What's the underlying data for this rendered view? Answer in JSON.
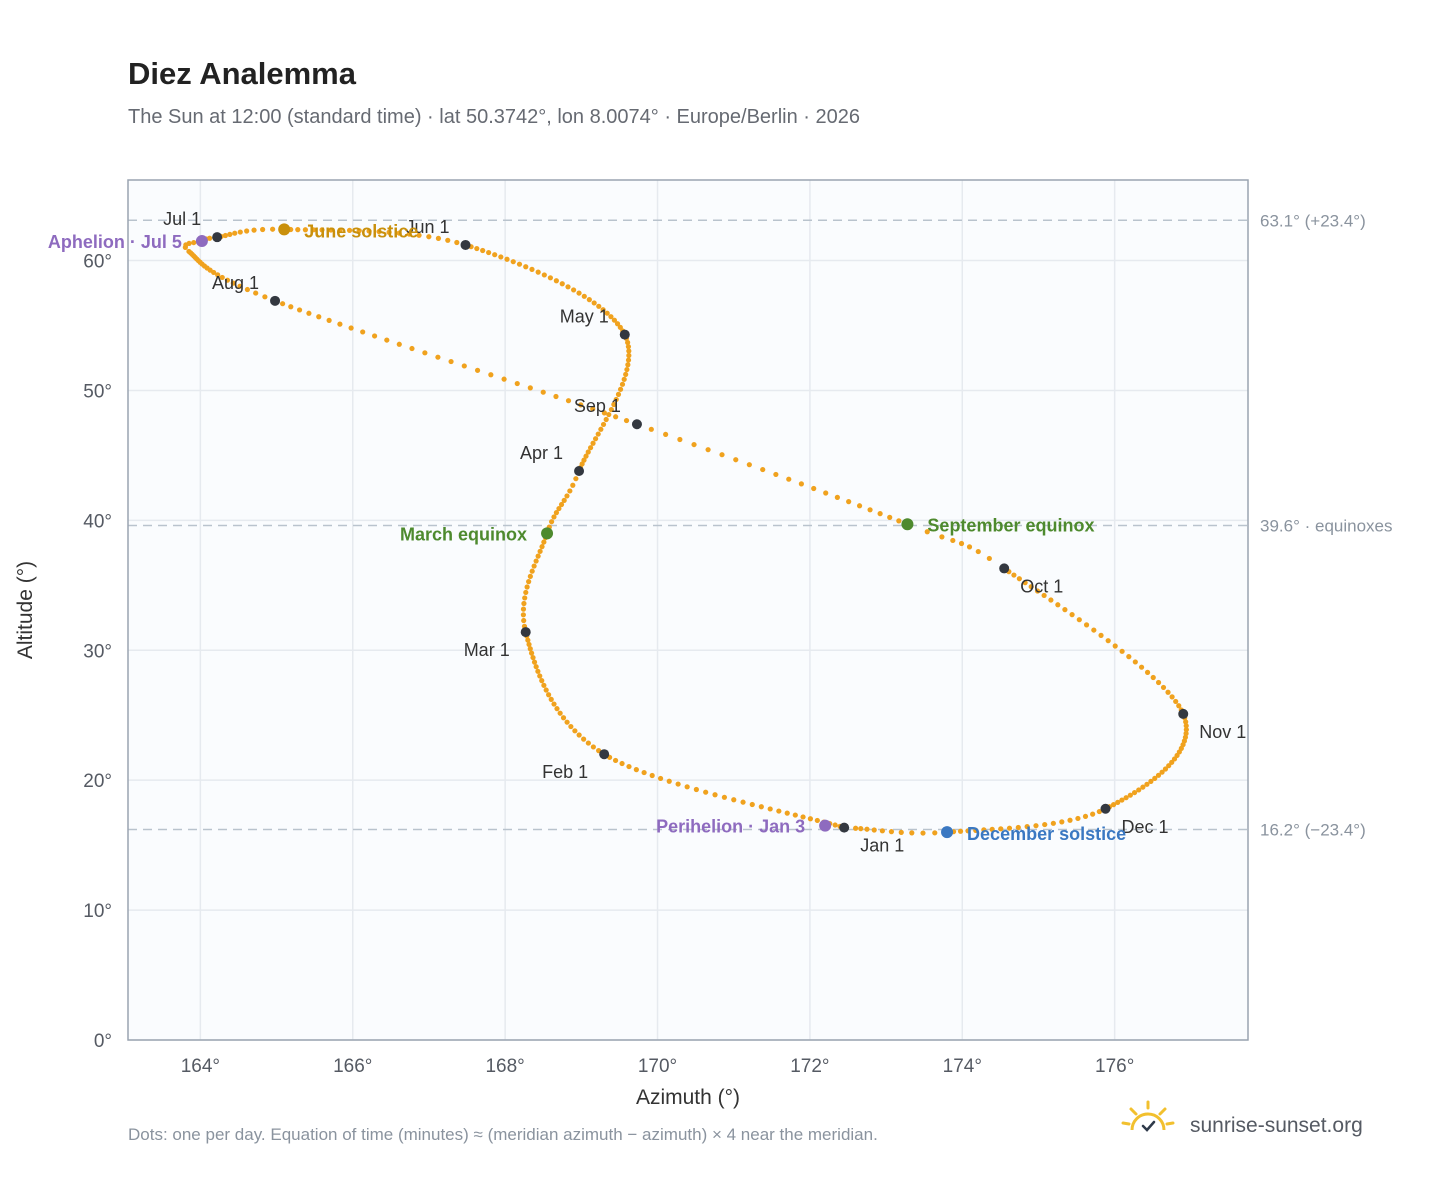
{
  "chart_data": {
    "type": "scatter",
    "title": "Diez Analemma",
    "subtitle": "The Sun at 12:00 (standard time) · lat 50.3742°, lon 8.0074° · Europe/Berlin · 2026",
    "xlabel": "Azimuth (°)",
    "ylabel": "Altitude (°)",
    "xlim": [
      163.05,
      177.75
    ],
    "ylim": [
      0,
      66.2
    ],
    "x_ticks": [
      164,
      166,
      168,
      170,
      172,
      174,
      176
    ],
    "x_tick_labels": [
      "164°",
      "166°",
      "168°",
      "170°",
      "172°",
      "174°",
      "176°"
    ],
    "y_ticks": [
      0,
      10,
      20,
      30,
      40,
      50,
      60
    ],
    "y_tick_labels": [
      "0°",
      "10°",
      "20°",
      "30°",
      "40°",
      "50°",
      "60°"
    ],
    "grid": true,
    "reference_lines": [
      {
        "y": 63.1,
        "label": "63.1° (+23.4°)"
      },
      {
        "y": 39.6,
        "label": "39.6° · equinoxes"
      },
      {
        "y": 16.2,
        "label": "16.2° (−23.4°)"
      }
    ],
    "path_control_points": [
      {
        "doy": 1,
        "az": 172.45,
        "alt": 16.35
      },
      {
        "doy": 32,
        "az": 169.3,
        "alt": 22.0
      },
      {
        "doy": 60,
        "az": 168.27,
        "alt": 31.4
      },
      {
        "doy": 79,
        "az": 168.55,
        "alt": 39.0
      },
      {
        "doy": 91,
        "az": 168.97,
        "alt": 43.8
      },
      {
        "doy": 121,
        "az": 169.57,
        "alt": 54.3
      },
      {
        "doy": 152,
        "az": 167.48,
        "alt": 61.2
      },
      {
        "doy": 172,
        "az": 165.1,
        "alt": 62.4
      },
      {
        "doy": 182,
        "az": 164.22,
        "alt": 61.8
      },
      {
        "doy": 186,
        "az": 164.02,
        "alt": 61.5
      },
      {
        "doy": 192,
        "az": 163.85,
        "alt": 60.7
      },
      {
        "doy": 213,
        "az": 164.98,
        "alt": 56.9
      },
      {
        "doy": 244,
        "az": 169.73,
        "alt": 47.4
      },
      {
        "doy": 266,
        "az": 173.28,
        "alt": 39.7
      },
      {
        "doy": 274,
        "az": 174.55,
        "alt": 36.3
      },
      {
        "doy": 305,
        "az": 176.9,
        "alt": 25.1
      },
      {
        "doy": 335,
        "az": 175.88,
        "alt": 17.8
      },
      {
        "doy": 355,
        "az": 173.8,
        "alt": 16.0
      },
      {
        "doy": 365,
        "az": 172.6,
        "alt": 16.3
      }
    ],
    "month_markers": [
      {
        "label": "Jan 1",
        "az": 172.45,
        "alt": 16.35
      },
      {
        "label": "Feb 1",
        "az": 169.3,
        "alt": 22.0
      },
      {
        "label": "Mar 1",
        "az": 168.27,
        "alt": 31.4
      },
      {
        "label": "Apr 1",
        "az": 168.97,
        "alt": 43.8
      },
      {
        "label": "May 1",
        "az": 169.57,
        "alt": 54.3
      },
      {
        "label": "Jun 1",
        "az": 167.48,
        "alt": 61.2
      },
      {
        "label": "Jul 1",
        "az": 164.22,
        "alt": 61.8
      },
      {
        "label": "Aug 1",
        "az": 164.98,
        "alt": 56.9
      },
      {
        "label": "Sep 1",
        "az": 169.73,
        "alt": 47.4
      },
      {
        "label": "Oct 1",
        "az": 174.55,
        "alt": 36.3
      },
      {
        "label": "Nov 1",
        "az": 176.9,
        "alt": 25.1
      },
      {
        "label": "Dec 1",
        "az": 175.88,
        "alt": 17.8
      }
    ],
    "events": [
      {
        "label": "Aphelion · Jul 5",
        "az": 164.02,
        "alt": 61.5,
        "color": "#8e6bbf"
      },
      {
        "label": "June solstice",
        "az": 165.1,
        "alt": 62.4,
        "color": "#c9900c"
      },
      {
        "label": "March equinox",
        "az": 168.55,
        "alt": 39.0,
        "color": "#4e8a2e"
      },
      {
        "label": "September equinox",
        "az": 173.28,
        "alt": 39.7,
        "color": "#4e8a2e"
      },
      {
        "label": "Perihelion · Jan 3",
        "az": 172.2,
        "alt": 16.5,
        "color": "#8e6bbf"
      },
      {
        "label": "December solstice",
        "az": 173.8,
        "alt": 16.0,
        "color": "#3a78c2"
      }
    ],
    "colors": {
      "path": "#f0a21e",
      "month_marker": "#333840",
      "plot_background": "#fafcfe",
      "grid": "#e6eaef",
      "reference_line": "#b9c3cd",
      "frame": "#9aa4b1"
    }
  },
  "footnote": "Dots: one per day. Equation of time (minutes) ≈ (meridian azimuth − azimuth) × 4 near the meridian.",
  "brand": {
    "name": "sunrise-sunset.org",
    "icon": "sun-logo-icon",
    "color": "#f2c02e"
  }
}
